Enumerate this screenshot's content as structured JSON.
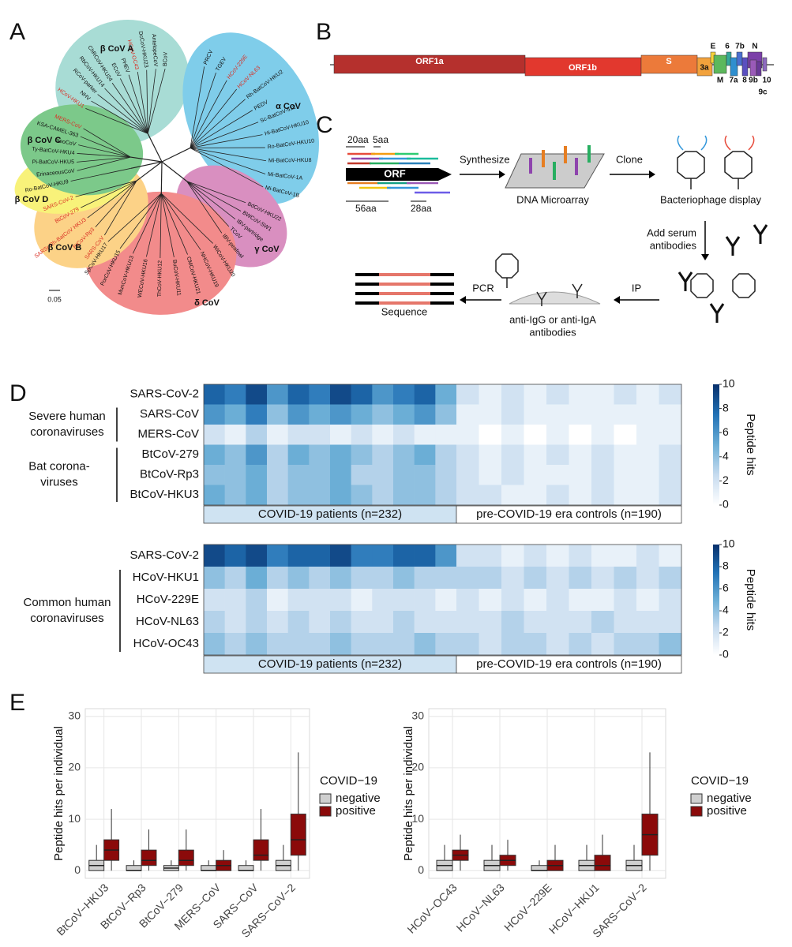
{
  "panel_labels": [
    "A",
    "B",
    "C",
    "D",
    "E"
  ],
  "tree": {
    "scale_label": "0.05",
    "groups": [
      {
        "label": "β CoV A",
        "color": "#a8dcd5",
        "leaves": [
          {
            "name": "HCoV-HKU1",
            "color": "#d93025"
          },
          {
            "name": "NHV",
            "color": "#111111"
          },
          {
            "name": "RCoV-parker",
            "color": "#111111"
          },
          {
            "name": "RbCoV-HKU14",
            "color": "#111111"
          },
          {
            "name": "ChRCoV-HKU24",
            "color": "#111111"
          },
          {
            "name": "ECoV",
            "color": "#111111"
          },
          {
            "name": "PHEV",
            "color": "#111111"
          },
          {
            "name": "HCoV-OC43",
            "color": "#d93025"
          },
          {
            "name": "DcCoV-HKU23",
            "color": "#111111"
          },
          {
            "name": "AntelopeCoV",
            "color": "#111111"
          },
          {
            "name": "BCoV",
            "color": "#111111"
          }
        ]
      },
      {
        "label": "α CoV",
        "color": "#7fcdea",
        "leaves": [
          {
            "name": "PRCV",
            "color": "#111111"
          },
          {
            "name": "TGEV",
            "color": "#111111"
          },
          {
            "name": "HCoV-229E",
            "color": "#d93025"
          },
          {
            "name": "HCoV-NL63",
            "color": "#d93025"
          },
          {
            "name": "Rh-BatCoV-HKU2",
            "color": "#111111"
          },
          {
            "name": "PEDV",
            "color": "#111111"
          },
          {
            "name": "Sc-BatCoV-512",
            "color": "#111111"
          },
          {
            "name": "Hi-BatCoV-HKU10",
            "color": "#111111"
          },
          {
            "name": "Ro-BatCoV-HKU10",
            "color": "#111111"
          },
          {
            "name": "Mi-BatCoV-HKU8",
            "color": "#111111"
          },
          {
            "name": "Mi-BatCoV-1A",
            "color": "#111111"
          },
          {
            "name": "Mi-BatCoV-1B",
            "color": "#111111"
          }
        ]
      },
      {
        "label": "γ CoV",
        "color": "#d98fc0",
        "leaves": [
          {
            "name": "BdCoV-HKU22",
            "color": "#111111"
          },
          {
            "name": "BWCoV-SW1",
            "color": "#111111"
          },
          {
            "name": "IBV-partridge",
            "color": "#111111"
          },
          {
            "name": "TCoV",
            "color": "#111111"
          },
          {
            "name": "IBV-peafowl",
            "color": "#111111"
          }
        ]
      },
      {
        "label": "δ CoV",
        "color": "#f28b8b",
        "leaves": [
          {
            "name": "WiCoV-HKU20",
            "color": "#111111"
          },
          {
            "name": "NHCoV-HKU19",
            "color": "#111111"
          },
          {
            "name": "CMCoV-HKU21",
            "color": "#111111"
          },
          {
            "name": "BuCoV-HKU11",
            "color": "#111111"
          },
          {
            "name": "ThCoV-HKU12",
            "color": "#111111"
          },
          {
            "name": "WECoV-HKU16",
            "color": "#111111"
          },
          {
            "name": "MunCoV-HKU13",
            "color": "#111111"
          },
          {
            "name": "PorCoV-HKU15",
            "color": "#111111"
          },
          {
            "name": "SpCoV-HKU17",
            "color": "#111111"
          }
        ]
      },
      {
        "label": "β CoV B",
        "color": "#fcd287",
        "leaves": [
          {
            "name": "SARS-CoV-2",
            "color": "#d93025"
          },
          {
            "name": "BtCoV-279",
            "color": "#d93025"
          },
          {
            "name": "SARSr-Rh-BatCoV HKU3",
            "color": "#d93025"
          },
          {
            "name": "BtCoV-Rp3",
            "color": "#d93025"
          },
          {
            "name": "SARS-CoV",
            "color": "#d93025"
          }
        ]
      },
      {
        "label": "β CoV D",
        "color": "#f8f27a",
        "leaves": [
          {
            "name": "Ro-BatCoV-HKU9",
            "color": "#111111"
          }
        ]
      },
      {
        "label": "β CoV C",
        "color": "#7cc98a",
        "leaves": [
          {
            "name": "MERS-CoV",
            "color": "#d93025"
          },
          {
            "name": "KSA-CAMEL-363",
            "color": "#111111"
          },
          {
            "name": "NeoCoV",
            "color": "#111111"
          },
          {
            "name": "Ty-BatCoV-HKU4",
            "color": "#111111"
          },
          {
            "name": "Pi-BatCoV-HKU5",
            "color": "#111111"
          },
          {
            "name": "ErinaceousCoV",
            "color": "#111111"
          }
        ]
      }
    ]
  },
  "genome": {
    "segments": [
      {
        "label": "ORF1a",
        "color": "#b5302d"
      },
      {
        "label": "ORF1b",
        "color": "#e2382e"
      },
      {
        "label": "S",
        "color": "#ec7a3a"
      },
      {
        "label": "3a",
        "color": "#f2a23c"
      },
      {
        "label": "E",
        "color": "#f6d23a"
      },
      {
        "label": "M",
        "color": "#5cb85c"
      },
      {
        "label": "6",
        "color": "#34a89a"
      },
      {
        "label": "7a",
        "color": "#2f8fcf"
      },
      {
        "label": "7b",
        "color": "#4a6fd0"
      },
      {
        "label": "8",
        "color": "#5a4fc0"
      },
      {
        "label": "N",
        "color": "#7b3fa8"
      },
      {
        "label": "9b",
        "color": "#9a5ab8"
      },
      {
        "label": "9c",
        "color": "#6a3a98"
      },
      {
        "label": "10",
        "color": "#8e6ac0"
      }
    ]
  },
  "workflow": {
    "orf": "ORF",
    "len_20": "20aa",
    "len_5": "5aa",
    "len_56": "56aa",
    "len_28": "28aa",
    "synthesize": "Synthesize",
    "microarray": "DNA Microarray",
    "clone": "Clone",
    "phage": "Bacteriophage display",
    "add_serum": [
      "Add serum",
      "antibodies"
    ],
    "ip": "IP",
    "anti": [
      "anti-IgG or anti-IgA",
      "antibodies"
    ],
    "pcr": "PCR",
    "sequence": "Sequence"
  },
  "chart_data": [
    {
      "type": "heatmap",
      "rows": [
        "SARS-CoV-2",
        "SARS-CoV",
        "MERS-CoV",
        "BtCoV-279",
        "BtCoV-Rp3",
        "BtCoV-HKU3"
      ],
      "row_groups": [
        {
          "label": [
            "Severe human",
            "coronaviruses"
          ]
        },
        {
          "label": [
            "Bat corona-",
            "viruses"
          ]
        }
      ],
      "column_groups": [
        {
          "label": "COVID-19 patients (n=232)",
          "values": [
            [
              8,
              7,
              9,
              6,
              8,
              7,
              9,
              8,
              6,
              7,
              8,
              5
            ],
            [
              6,
              5,
              7,
              4,
              6,
              5,
              6,
              5,
              4,
              5,
              6,
              4
            ],
            [
              2,
              1,
              3,
              1,
              2,
              2,
              1,
              2,
              1,
              2,
              1,
              1
            ],
            [
              5,
              4,
              6,
              3,
              5,
              4,
              5,
              4,
              3,
              4,
              5,
              3
            ],
            [
              4,
              4,
              5,
              3,
              4,
              4,
              5,
              3,
              3,
              4,
              4,
              3
            ],
            [
              5,
              4,
              5,
              3,
              4,
              4,
              5,
              4,
              3,
              4,
              4,
              3
            ]
          ]
        },
        {
          "label": "pre-COVID-19 era controls (n=190)",
          "values": [
            [
              2,
              1,
              2,
              1,
              2,
              1,
              1,
              2,
              1,
              2
            ],
            [
              1,
              1,
              2,
              1,
              1,
              1,
              1,
              1,
              1,
              1
            ],
            [
              1,
              0,
              1,
              0,
              1,
              0,
              1,
              0,
              1,
              1
            ],
            [
              2,
              1,
              2,
              1,
              2,
              1,
              2,
              1,
              1,
              2
            ],
            [
              2,
              1,
              2,
              1,
              1,
              1,
              2,
              1,
              1,
              2
            ],
            [
              2,
              2,
              1,
              1,
              2,
              1,
              2,
              1,
              1,
              2
            ]
          ]
        }
      ],
      "colorbar": {
        "title": "Peptide hits",
        "lim": [
          0,
          10
        ],
        "ticks": [
          0,
          2,
          4,
          6,
          8,
          10
        ]
      }
    },
    {
      "type": "heatmap",
      "rows": [
        "SARS-CoV-2",
        "HCoV-HKU1",
        "HCoV-229E",
        "HCoV-NL63",
        "HCoV-OC43"
      ],
      "row_groups": [
        {
          "label": [
            "Common human",
            "coronaviruses"
          ]
        }
      ],
      "column_groups": [
        {
          "label": "COVID-19 patients (n=232)",
          "values": [
            [
              9,
              8,
              9,
              7,
              8,
              8,
              9,
              7,
              7,
              8,
              8,
              6
            ],
            [
              4,
              3,
              5,
              3,
              4,
              3,
              4,
              3,
              3,
              4,
              3,
              3
            ],
            [
              2,
              2,
              3,
              1,
              2,
              2,
              2,
              1,
              2,
              2,
              2,
              1
            ],
            [
              3,
              2,
              3,
              2,
              3,
              2,
              3,
              2,
              2,
              3,
              2,
              2
            ],
            [
              4,
              3,
              4,
              3,
              3,
              3,
              4,
              3,
              3,
              3,
              4,
              3
            ]
          ]
        },
        {
          "label": "pre-COVID-19 era controls (n=190)",
          "values": [
            [
              2,
              2,
              1,
              2,
              1,
              2,
              1,
              1,
              2,
              1
            ],
            [
              3,
              3,
              2,
              3,
              2,
              3,
              2,
              3,
              2,
              3
            ],
            [
              2,
              1,
              2,
              1,
              2,
              1,
              1,
              2,
              1,
              2
            ],
            [
              2,
              2,
              3,
              2,
              2,
              2,
              3,
              2,
              2,
              2
            ],
            [
              3,
              2,
              3,
              3,
              2,
              3,
              2,
              3,
              3,
              4
            ]
          ]
        }
      ],
      "colorbar": {
        "title": "Peptide hits",
        "lim": [
          0,
          10
        ],
        "ticks": [
          0,
          2,
          4,
          6,
          8,
          10
        ]
      }
    },
    {
      "type": "box",
      "ylabel": "Peptide hits per individual",
      "categories": [
        "BtCoV−HKU3",
        "BtCoV−Rp3",
        "BtCoV−279",
        "MERS−CoV",
        "SARS−CoV",
        "SARS−CoV−2"
      ],
      "ylim": [
        -1.5,
        31.5
      ],
      "yticks": [
        0,
        10,
        20,
        30
      ],
      "grid": true,
      "legend_title": "COVID−19",
      "series": [
        {
          "name": "negative",
          "color": "#cfcfcf",
          "values": [
            {
              "min": 0,
              "q1": 0,
              "median": 1,
              "q3": 2,
              "max": 5
            },
            {
              "min": 0,
              "q1": 0,
              "median": 0,
              "q3": 1,
              "max": 2
            },
            {
              "min": 0,
              "q1": 0,
              "median": 0.5,
              "q3": 1,
              "max": 2
            },
            {
              "min": 0,
              "q1": 0,
              "median": 0,
              "q3": 1,
              "max": 2
            },
            {
              "min": 0,
              "q1": 0,
              "median": 0,
              "q3": 1,
              "max": 2
            },
            {
              "min": 0,
              "q1": 0,
              "median": 1,
              "q3": 2,
              "max": 5
            }
          ]
        },
        {
          "name": "positive",
          "color": "#8b0a0a",
          "values": [
            {
              "min": 0,
              "q1": 2,
              "median": 4,
              "q3": 6,
              "max": 12
            },
            {
              "min": 0,
              "q1": 1,
              "median": 2,
              "q3": 4,
              "max": 8
            },
            {
              "min": 0,
              "q1": 1,
              "median": 2,
              "q3": 4,
              "max": 8
            },
            {
              "min": 0,
              "q1": 0,
              "median": 1,
              "q3": 2,
              "max": 4
            },
            {
              "min": 0,
              "q1": 2,
              "median": 3,
              "q3": 6,
              "max": 12
            },
            {
              "min": 0,
              "q1": 3,
              "median": 6,
              "q3": 11,
              "max": 23
            }
          ]
        }
      ]
    },
    {
      "type": "box",
      "ylabel": "Peptide hits per individual",
      "categories": [
        "HCoV−OC43",
        "HCoV−NL63",
        "HCoV−229E",
        "HCoV−HKU1",
        "SARS−CoV−2"
      ],
      "ylim": [
        -1.5,
        31.5
      ],
      "yticks": [
        0,
        10,
        20,
        30
      ],
      "grid": true,
      "legend_title": "COVID−19",
      "series": [
        {
          "name": "negative",
          "color": "#cfcfcf",
          "values": [
            {
              "min": 0,
              "q1": 0,
              "median": 1,
              "q3": 2,
              "max": 5
            },
            {
              "min": 0,
              "q1": 0,
              "median": 1,
              "q3": 2,
              "max": 5
            },
            {
              "min": 0,
              "q1": 0,
              "median": 0,
              "q3": 1,
              "max": 2
            },
            {
              "min": 0,
              "q1": 0,
              "median": 1,
              "q3": 2,
              "max": 5
            },
            {
              "min": 0,
              "q1": 0,
              "median": 1,
              "q3": 2,
              "max": 5
            }
          ]
        },
        {
          "name": "positive",
          "color": "#8b0a0a",
          "values": [
            {
              "min": 0,
              "q1": 2,
              "median": 3,
              "q3": 4,
              "max": 7
            },
            {
              "min": 0,
              "q1": 1,
              "median": 2,
              "q3": 3,
              "max": 6
            },
            {
              "min": 0,
              "q1": 0,
              "median": 1,
              "q3": 2,
              "max": 5
            },
            {
              "min": 0,
              "q1": 0,
              "median": 1,
              "q3": 3,
              "max": 7
            },
            {
              "min": 0,
              "q1": 3,
              "median": 7,
              "q3": 11,
              "max": 23
            }
          ]
        }
      ]
    }
  ]
}
